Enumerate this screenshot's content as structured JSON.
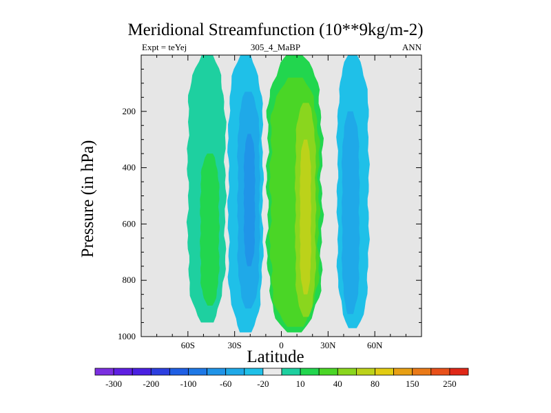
{
  "title": "Meridional Streamfunction (10**9kg/m-2)",
  "subtitle_left": "Expt = teYej",
  "subtitle_center": "305_4_MaBP",
  "subtitle_right": "ANN",
  "colors": {
    "background": "#e6e6e6",
    "c_neg300": "#7b2fe0",
    "c_neg250": "#5f1fe2",
    "c_neg200": "#4a20e2",
    "c_neg150": "#2d3fe0",
    "c_neg100": "#1f5fe4",
    "c_neg80": "#1e78e6",
    "c_neg60": "#2094e8",
    "c_neg40": "#1fa9e8",
    "c_neg20": "#1fc0e8",
    "c_0": "#eaeaea",
    "c_10": "#1ed0a0",
    "c_20": "#22d64e",
    "c_40": "#4ad626",
    "c_60": "#8ad61e",
    "c_80": "#bcd21a",
    "c_100": "#e2cc12",
    "c_150": "#e8a014",
    "c_200": "#ea7a18",
    "c_250": "#e8501a",
    "c_300": "#e02818"
  },
  "chart_data": {
    "type": "contour",
    "title": "Meridional Streamfunction (10**9kg/m-2)",
    "xlabel": "Latitude",
    "ylabel": "Pressure (in hPa)",
    "xlim": [
      -90,
      90
    ],
    "ylim": [
      1000,
      0
    ],
    "x_ticks": [
      -60,
      -30,
      0,
      30,
      60
    ],
    "x_tick_labels": [
      "60S",
      "30S",
      "0",
      "30N",
      "60N"
    ],
    "y_ticks": [
      200,
      400,
      600,
      800,
      1000
    ],
    "y_tick_labels": [
      "200",
      "400",
      "600",
      "800",
      "1000"
    ],
    "levels": [
      -300,
      -250,
      -200,
      -150,
      -100,
      -80,
      -60,
      -40,
      -20,
      0,
      10,
      20,
      40,
      60,
      80,
      100,
      150,
      200,
      250,
      300
    ],
    "colorbar_labels": [
      "-300",
      "-200",
      "-100",
      "-60",
      "-20",
      "10",
      "40",
      "80",
      "150",
      "250"
    ],
    "regions": [
      {
        "name": "sh-polar-cell-outer",
        "level": 10,
        "bounds": {
          "lat_min": -60,
          "lat_max": -36,
          "p_top": 0,
          "p_bottom": 950
        }
      },
      {
        "name": "sh-polar-cell-core",
        "level": 20,
        "bounds": {
          "lat_min": -52,
          "lat_max": -40,
          "p_top": 350,
          "p_bottom": 890
        }
      },
      {
        "name": "sh-ferrel-outer",
        "level": -20,
        "bounds": {
          "lat_min": -34,
          "lat_max": -12,
          "p_top": 0,
          "p_bottom": 985
        }
      },
      {
        "name": "sh-ferrel-mid",
        "level": -40,
        "bounds": {
          "lat_min": -28,
          "lat_max": -14,
          "p_top": 130,
          "p_bottom": 900
        }
      },
      {
        "name": "sh-ferrel-core",
        "level": -60,
        "bounds": {
          "lat_min": -24,
          "lat_max": -17,
          "p_top": 280,
          "p_bottom": 750
        }
      },
      {
        "name": "tropical-cell-outer",
        "level": 20,
        "bounds": {
          "lat_min": -9,
          "lat_max": 26,
          "p_top": 0,
          "p_bottom": 985
        }
      },
      {
        "name": "tropical-cell-mid",
        "level": 40,
        "bounds": {
          "lat_min": -7,
          "lat_max": 24,
          "p_top": 80,
          "p_bottom": 965
        }
      },
      {
        "name": "tropical-cell-inner",
        "level": 60,
        "bounds": {
          "lat_min": 9,
          "lat_max": 22,
          "p_top": 170,
          "p_bottom": 930
        }
      },
      {
        "name": "tropical-cell-core",
        "level": 80,
        "bounds": {
          "lat_min": 12,
          "lat_max": 19,
          "p_top": 300,
          "p_bottom": 850
        }
      },
      {
        "name": "nh-ferrel-outer",
        "level": -20,
        "bounds": {
          "lat_min": 36,
          "lat_max": 56,
          "p_top": 0,
          "p_bottom": 970
        }
      },
      {
        "name": "nh-ferrel-core",
        "level": -40,
        "bounds": {
          "lat_min": 39,
          "lat_max": 50,
          "p_top": 200,
          "p_bottom": 920
        }
      }
    ]
  }
}
